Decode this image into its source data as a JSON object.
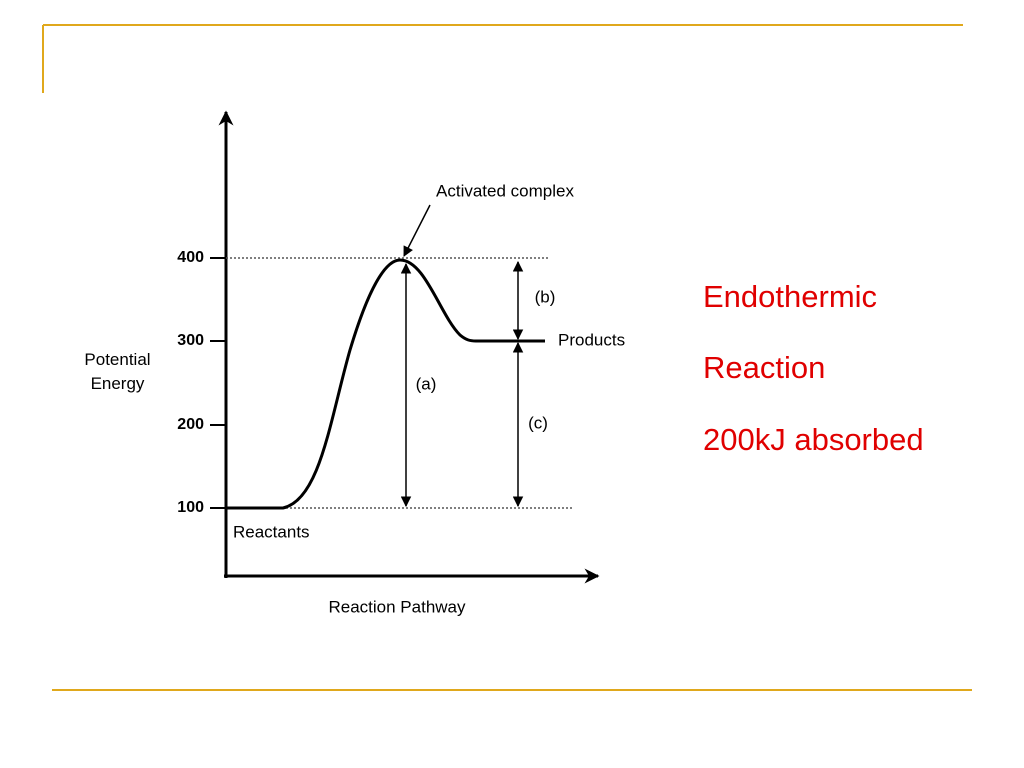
{
  "slide": {
    "notes": [
      "Endothermic",
      "Reaction",
      "200kJ absorbed"
    ]
  },
  "diagram": {
    "y_axis_label": "Potential Energy",
    "x_axis_label": "Reaction Pathway",
    "y_ticks": [
      "400",
      "300",
      "200",
      "100"
    ],
    "labels": {
      "activated_complex": "Activated complex",
      "products": "Products",
      "reactants": "Reactants",
      "a": "(a)",
      "b": "(b)",
      "c": "(c)"
    }
  }
}
